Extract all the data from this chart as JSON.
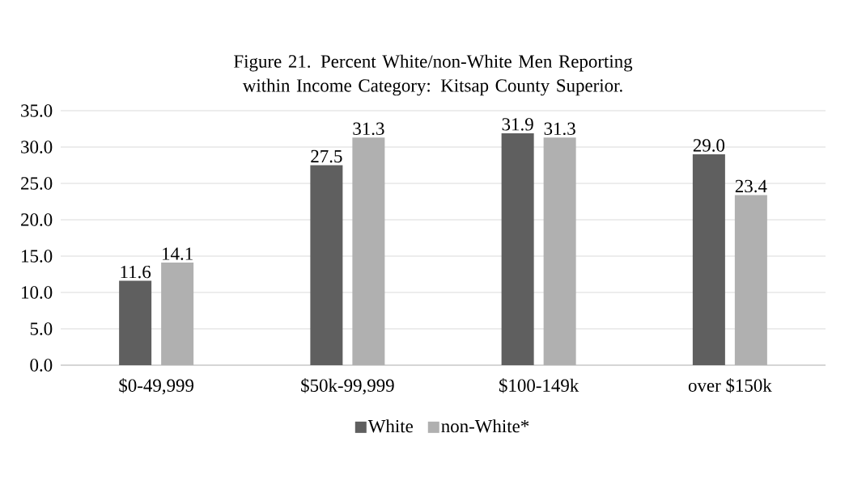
{
  "chart_data": {
    "type": "bar",
    "title": "Figure 21. Percent White/non-White Men Reporting within Income Category: Kitsap County Superior.",
    "categories": [
      "$0-49,999",
      "$50k-99,999",
      "$100-149k",
      "over $150k"
    ],
    "series": [
      {
        "name": "White",
        "color": "#5f5f5f",
        "values": [
          11.6,
          27.5,
          31.9,
          29.0
        ],
        "value_labels": [
          "11.6",
          "27.5",
          "31.9",
          "29.0"
        ]
      },
      {
        "name": "non-White*",
        "color": "#b0b0b0",
        "values": [
          14.1,
          31.3,
          31.3,
          23.4
        ],
        "value_labels": [
          "14.1",
          "31.3",
          "31.3",
          "23.4"
        ]
      }
    ],
    "ylim": [
      0,
      35
    ],
    "yticks": [
      {
        "value": 0,
        "label": "0.0"
      },
      {
        "value": 5,
        "label": "5.0"
      },
      {
        "value": 10,
        "label": "10.0"
      },
      {
        "value": 15,
        "label": "15.0"
      },
      {
        "value": 20,
        "label": "20.0"
      },
      {
        "value": 25,
        "label": "25.0"
      },
      {
        "value": 30,
        "label": "30.0"
      },
      {
        "value": 35,
        "label": "35.0"
      }
    ],
    "grid": "y",
    "legend": "bottom"
  }
}
